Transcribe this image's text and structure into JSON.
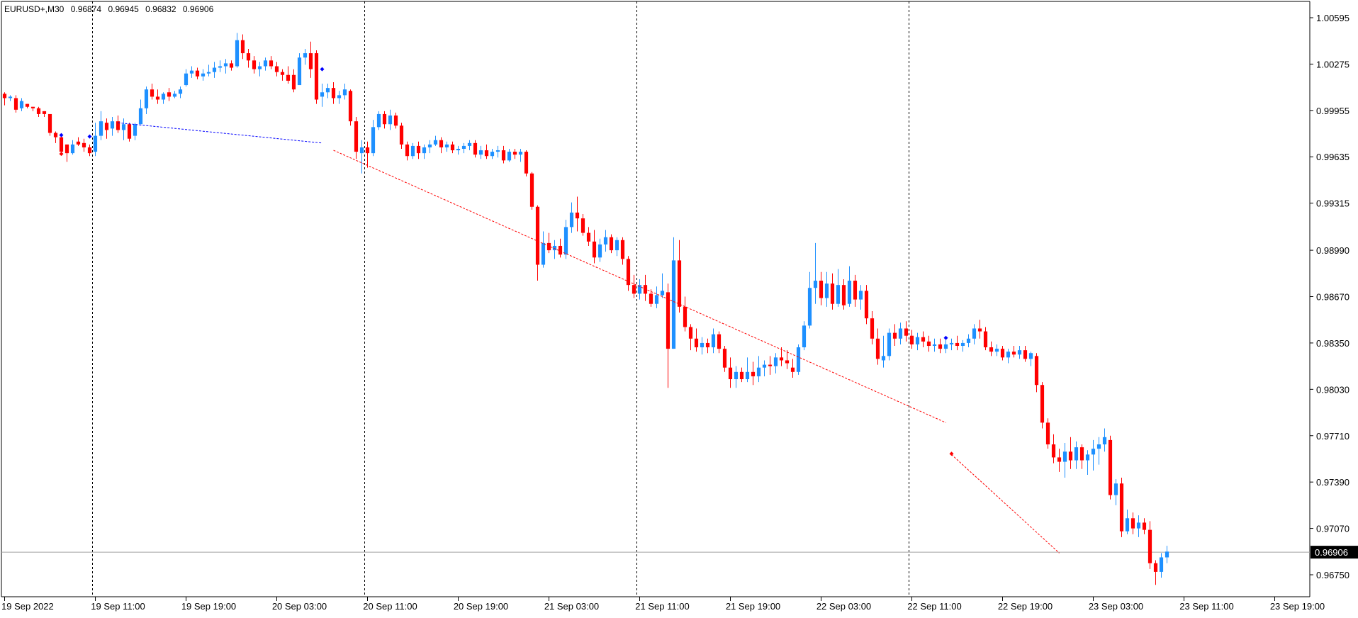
{
  "header": {
    "symbol": "EURUSD+,M30",
    "open": "0.96874",
    "high": "0.96945",
    "low": "0.96832",
    "close": "0.96906"
  },
  "chart_data": {
    "type": "candlestick",
    "timeframe": "M30",
    "grid": false,
    "y_ticks": [
      "1.00595",
      "1.00275",
      "0.99955",
      "0.99635",
      "0.99315",
      "0.98990",
      "0.98670",
      "0.98350",
      "0.98030",
      "0.97710",
      "0.97390",
      "0.97070",
      "0.96750"
    ],
    "current_price": "0.96906",
    "x_ticks": [
      "19 Sep 2022",
      "19 Sep 11:00",
      "19 Sep 19:00",
      "20 Sep 03:00",
      "20 Sep 11:00",
      "20 Sep 19:00",
      "21 Sep 03:00",
      "21 Sep 11:00",
      "21 Sep 19:00",
      "22 Sep 03:00",
      "22 Sep 11:00",
      "22 Sep 19:00",
      "23 Sep 03:00",
      "23 Sep 11:00",
      "23 Sep 19:00"
    ],
    "day_separators": [
      "20 Sep 2022 00:00",
      "21 Sep 2022 00:00",
      "22 Sep 2022 00:00",
      "23 Sep 2022 00:00"
    ],
    "colors": {
      "bull": "#1e90ff",
      "bear": "#ff0000",
      "axis": "#000000",
      "price_line": "#a0a0a0",
      "trend_red": "#ff0000",
      "trend_blue": "#0000ff"
    },
    "candles": [
      [
        1.0007,
        1.0008,
        0.9999,
        1.0004
      ],
      [
        1.0004,
        1.0006,
        1.0002,
        1.0005
      ],
      [
        1.0004,
        1.0006,
        0.9994,
        0.9996
      ],
      [
        0.9997,
        1.0004,
        0.9995,
        1.0002
      ],
      [
        1.0,
        1.0,
        0.9997,
        0.9998
      ],
      [
        0.9998,
        0.9998,
        0.9995,
        0.9997
      ],
      [
        0.9997,
        0.9998,
        0.9991,
        0.9993
      ],
      [
        0.9995,
        0.9995,
        0.9991,
        0.9993
      ],
      [
        0.9993,
        0.9993,
        0.9978,
        0.998
      ],
      [
        0.998,
        0.9981,
        0.9973,
        0.9977
      ],
      [
        0.9977,
        0.9979,
        0.9965,
        0.9967
      ],
      [
        0.9972,
        0.9972,
        0.996,
        0.9966
      ],
      [
        0.9966,
        0.9975,
        0.9965,
        0.9972
      ],
      [
        0.9974,
        0.9977,
        0.9971,
        0.9972
      ],
      [
        0.9973,
        0.9976,
        0.9967,
        0.997
      ],
      [
        0.997,
        0.9972,
        0.9964,
        0.9966
      ],
      [
        0.9967,
        0.9987,
        0.9964,
        0.9978
      ],
      [
        0.9978,
        0.9995,
        0.9975,
        0.9988
      ],
      [
        0.9987,
        0.999,
        0.9976,
        0.9982
      ],
      [
        0.9983,
        0.9991,
        0.9978,
        0.9988
      ],
      [
        0.9988,
        0.9992,
        0.998,
        0.9982
      ],
      [
        0.9982,
        0.999,
        0.9975,
        0.9986
      ],
      [
        0.9986,
        0.9987,
        0.9974,
        0.9976
      ],
      [
        0.9978,
        0.9987,
        0.9975,
        0.9986
      ],
      [
        0.9986,
        1.0003,
        0.9986,
        0.9997
      ],
      [
        0.9997,
        1.0012,
        0.9993,
        1.001
      ],
      [
        1.001,
        1.0014,
        1.0003,
        1.0005
      ],
      [
        1.0005,
        1.001,
        1.0,
        1.0003
      ],
      [
        1.0003,
        1.0008,
        1.0,
        1.0007
      ],
      [
        1.0008,
        1.0011,
        1.0002,
        1.0005
      ],
      [
        1.0005,
        1.0009,
        1.0004,
        1.0007
      ],
      [
        1.0007,
        1.0012,
        1.0004,
        1.001
      ],
      [
        1.0013,
        1.0024,
        1.0012,
        1.0021
      ],
      [
        1.0021,
        1.0026,
        1.0018,
        1.0023
      ],
      [
        1.0023,
        1.0025,
        1.0017,
        1.0019
      ],
      [
        1.0019,
        1.0024,
        1.0016,
        1.0021
      ],
      [
        1.0021,
        1.0027,
        1.0019,
        1.0022
      ],
      [
        1.0022,
        1.0029,
        1.0018,
        1.0025
      ],
      [
        1.0025,
        1.003,
        1.0022,
        1.0026
      ],
      [
        1.0026,
        1.0031,
        1.0021,
        1.0028
      ],
      [
        1.0028,
        1.003,
        1.0023,
        1.0025
      ],
      [
        1.0026,
        1.0049,
        1.0025,
        1.0044
      ],
      [
        1.0044,
        1.0048,
        1.0031,
        1.0035
      ],
      [
        1.0035,
        1.0038,
        1.0025,
        1.003
      ],
      [
        1.003,
        1.0033,
        1.0021,
        1.0024
      ],
      [
        1.0024,
        1.0029,
        1.0019,
        1.0026
      ],
      [
        1.0026,
        1.0032,
        1.0023,
        1.003
      ],
      [
        1.003,
        1.0033,
        1.0024,
        1.0026
      ],
      [
        1.0026,
        1.0029,
        1.0019,
        1.0022
      ],
      [
        1.0022,
        1.0024,
        1.0016,
        1.002
      ],
      [
        1.002,
        1.0026,
        1.0014,
        1.0016
      ],
      [
        1.002,
        1.0024,
        1.0008,
        1.001
      ],
      [
        1.0013,
        1.0035,
        1.0013,
        1.0032
      ],
      [
        1.0032,
        1.0038,
        1.0027,
        1.0035
      ],
      [
        1.0035,
        1.0043,
        1.0018,
        1.0024
      ],
      [
        1.0035,
        1.0037,
        1.0,
        1.0003
      ],
      [
        1.0005,
        1.0014,
        0.9998,
        1.0008
      ],
      [
        1.0008,
        1.0014,
        1.0004,
        1.0011
      ],
      [
        1.0011,
        1.0015,
        1.0,
        1.0004
      ],
      [
        1.0004,
        1.0009,
        1.0,
        1.0006
      ],
      [
        1.0006,
        1.0014,
        1.0003,
        1.001
      ],
      [
        1.0009,
        1.001,
        0.9985,
        0.9988
      ],
      [
        0.9988,
        0.9991,
        0.9962,
        0.9967
      ],
      [
        0.9966,
        0.9975,
        0.9952,
        0.997
      ],
      [
        0.997,
        0.9974,
        0.9956,
        0.9966
      ],
      [
        0.9966,
        0.9989,
        0.9964,
        0.9984
      ],
      [
        0.9984,
        0.9995,
        0.9982,
        0.9993
      ],
      [
        0.9993,
        0.9995,
        0.9983,
        0.9986
      ],
      [
        0.9986,
        0.9996,
        0.9982,
        0.9992
      ],
      [
        0.9992,
        0.9994,
        0.9983,
        0.9985
      ],
      [
        0.9985,
        0.9987,
        0.9969,
        0.9972
      ],
      [
        0.9972,
        0.9974,
        0.9961,
        0.9964
      ],
      [
        0.9964,
        0.9973,
        0.9962,
        0.9971
      ],
      [
        0.9971,
        0.9974,
        0.9962,
        0.9966
      ],
      [
        0.9966,
        0.9972,
        0.9962,
        0.997
      ],
      [
        0.997,
        0.9975,
        0.9966,
        0.9972
      ],
      [
        0.9972,
        0.9978,
        0.9971,
        0.9975
      ],
      [
        0.9975,
        0.9977,
        0.9966,
        0.997
      ],
      [
        0.997,
        0.9974,
        0.9967,
        0.9972
      ],
      [
        0.9972,
        0.9974,
        0.9966,
        0.9968
      ],
      [
        0.9968,
        0.9971,
        0.9965,
        0.9969
      ],
      [
        0.9969,
        0.9973,
        0.9966,
        0.9971
      ],
      [
        0.9971,
        0.9975,
        0.9968,
        0.9973
      ],
      [
        0.9973,
        0.9975,
        0.9963,
        0.9965
      ],
      [
        0.9965,
        0.9971,
        0.9962,
        0.9968
      ],
      [
        0.9968,
        0.9972,
        0.9962,
        0.9964
      ],
      [
        0.9964,
        0.9969,
        0.9962,
        0.9967
      ],
      [
        0.9967,
        0.9971,
        0.9963,
        0.9968
      ],
      [
        0.9968,
        0.9971,
        0.9959,
        0.9961
      ],
      [
        0.9961,
        0.9969,
        0.996,
        0.9967
      ],
      [
        0.9967,
        0.9969,
        0.9962,
        0.9965
      ],
      [
        0.9965,
        0.9969,
        0.996,
        0.9967
      ],
      [
        0.9967,
        0.9968,
        0.995,
        0.9952
      ],
      [
        0.9952,
        0.9953,
        0.9927,
        0.9929
      ],
      [
        0.9929,
        0.993,
        0.9878,
        0.9889
      ],
      [
        0.9889,
        0.9912,
        0.9887,
        0.9904
      ],
      [
        0.9904,
        0.9911,
        0.9897,
        0.9899
      ],
      [
        0.9899,
        0.9906,
        0.9893,
        0.9902
      ],
      [
        0.9902,
        0.9907,
        0.9894,
        0.9896
      ],
      [
        0.9896,
        0.992,
        0.9893,
        0.9915
      ],
      [
        0.9915,
        0.9932,
        0.9911,
        0.9925
      ],
      [
        0.9925,
        0.9936,
        0.9912,
        0.9921
      ],
      [
        0.9921,
        0.9924,
        0.9909,
        0.9911
      ],
      [
        0.9911,
        0.9915,
        0.9902,
        0.9905
      ],
      [
        0.9905,
        0.9913,
        0.989,
        0.9894
      ],
      [
        0.9894,
        0.9907,
        0.9891,
        0.9903
      ],
      [
        0.9903,
        0.9913,
        0.9898,
        0.9908
      ],
      [
        0.9908,
        0.991,
        0.9897,
        0.9899
      ],
      [
        0.9899,
        0.9908,
        0.9895,
        0.9906
      ],
      [
        0.9906,
        0.9908,
        0.9889,
        0.9893
      ],
      [
        0.9893,
        0.9895,
        0.9871,
        0.9875
      ],
      [
        0.9875,
        0.9882,
        0.9866,
        0.9869
      ],
      [
        0.9869,
        0.9879,
        0.9865,
        0.9875
      ],
      [
        0.9875,
        0.9882,
        0.9864,
        0.9869
      ],
      [
        0.9869,
        0.9872,
        0.986,
        0.9862
      ],
      [
        0.9862,
        0.9874,
        0.9859,
        0.9868
      ],
      [
        0.9868,
        0.9883,
        0.9866,
        0.9871
      ],
      [
        0.987,
        0.9876,
        0.9804,
        0.9831
      ],
      [
        0.9831,
        0.9908,
        0.9831,
        0.9892
      ],
      [
        0.9892,
        0.9906,
        0.9856,
        0.986
      ],
      [
        0.986,
        0.9867,
        0.9843,
        0.9846
      ],
      [
        0.9846,
        0.9848,
        0.983,
        0.9838
      ],
      [
        0.9838,
        0.9845,
        0.9829,
        0.9832
      ],
      [
        0.9832,
        0.9839,
        0.9827,
        0.9835
      ],
      [
        0.9835,
        0.9838,
        0.9828,
        0.9832
      ],
      [
        0.9832,
        0.9845,
        0.9828,
        0.9841
      ],
      [
        0.9841,
        0.9843,
        0.9828,
        0.9831
      ],
      [
        0.9831,
        0.9833,
        0.9815,
        0.9818
      ],
      [
        0.9818,
        0.9825,
        0.9804,
        0.981
      ],
      [
        0.981,
        0.9819,
        0.9804,
        0.9815
      ],
      [
        0.9815,
        0.9818,
        0.9808,
        0.981
      ],
      [
        0.981,
        0.9825,
        0.9808,
        0.9815
      ],
      [
        0.9815,
        0.9822,
        0.9806,
        0.9812
      ],
      [
        0.9812,
        0.9826,
        0.9808,
        0.9818
      ],
      [
        0.9818,
        0.9823,
        0.9812,
        0.982
      ],
      [
        0.982,
        0.9826,
        0.9813,
        0.9819
      ],
      [
        0.9819,
        0.9828,
        0.9814,
        0.9825
      ],
      [
        0.9825,
        0.9832,
        0.9819,
        0.9823
      ],
      [
        0.9823,
        0.983,
        0.9817,
        0.9821
      ],
      [
        0.9818,
        0.9824,
        0.9811,
        0.9815
      ],
      [
        0.9815,
        0.9834,
        0.9813,
        0.9832
      ],
      [
        0.9832,
        0.985,
        0.983,
        0.9847
      ],
      [
        0.9847,
        0.9884,
        0.9845,
        0.9873
      ],
      [
        0.9873,
        0.9904,
        0.9862,
        0.9878
      ],
      [
        0.9878,
        0.9884,
        0.9861,
        0.9866
      ],
      [
        0.9866,
        0.9884,
        0.986,
        0.9876
      ],
      [
        0.9876,
        0.9883,
        0.9858,
        0.9862
      ],
      [
        0.9862,
        0.9886,
        0.986,
        0.9875
      ],
      [
        0.9875,
        0.9879,
        0.9858,
        0.9861
      ],
      [
        0.9862,
        0.9888,
        0.986,
        0.9878
      ],
      [
        0.9878,
        0.9882,
        0.986,
        0.9865
      ],
      [
        0.9865,
        0.9875,
        0.9858,
        0.9871
      ],
      [
        0.9871,
        0.9875,
        0.9848,
        0.9852
      ],
      [
        0.9852,
        0.9857,
        0.9834,
        0.9838
      ],
      [
        0.9838,
        0.9845,
        0.982,
        0.9824
      ],
      [
        0.9823,
        0.984,
        0.9818,
        0.9826
      ],
      [
        0.9826,
        0.9845,
        0.9823,
        0.9842
      ],
      [
        0.9842,
        0.9848,
        0.9833,
        0.9838
      ],
      [
        0.9838,
        0.9849,
        0.9834,
        0.9845
      ],
      [
        0.9845,
        0.985,
        0.9836,
        0.984
      ],
      [
        0.984,
        0.9844,
        0.9831,
        0.9834
      ],
      [
        0.9834,
        0.9842,
        0.983,
        0.9839
      ],
      [
        0.9839,
        0.9843,
        0.9832,
        0.9836
      ],
      [
        0.9836,
        0.984,
        0.9829,
        0.9833
      ],
      [
        0.9833,
        0.9838,
        0.9829,
        0.9834
      ],
      [
        0.9834,
        0.9838,
        0.9828,
        0.9831
      ],
      [
        0.9831,
        0.9837,
        0.9828,
        0.9834
      ],
      [
        0.9834,
        0.9838,
        0.983,
        0.9835
      ],
      [
        0.9835,
        0.984,
        0.983,
        0.9833
      ],
      [
        0.9833,
        0.9837,
        0.9829,
        0.9835
      ],
      [
        0.9835,
        0.9841,
        0.9832,
        0.9838
      ],
      [
        0.9838,
        0.9848,
        0.9834,
        0.9845
      ],
      [
        0.9845,
        0.9851,
        0.9838,
        0.9843
      ],
      [
        0.9843,
        0.9846,
        0.983,
        0.9832
      ],
      [
        0.9832,
        0.9836,
        0.9826,
        0.9829
      ],
      [
        0.9829,
        0.9834,
        0.9826,
        0.9831
      ],
      [
        0.9831,
        0.9833,
        0.9823,
        0.9825
      ],
      [
        0.9825,
        0.9831,
        0.9821,
        0.9829
      ],
      [
        0.9829,
        0.9833,
        0.9825,
        0.9827
      ],
      [
        0.9827,
        0.9833,
        0.9824,
        0.983
      ],
      [
        0.983,
        0.9833,
        0.9822,
        0.9824
      ],
      [
        0.9824,
        0.9829,
        0.9819,
        0.9828
      ],
      [
        0.9826,
        0.9828,
        0.9801,
        0.9806
      ],
      [
        0.9806,
        0.9808,
        0.9776,
        0.978
      ],
      [
        0.978,
        0.9783,
        0.9762,
        0.9765
      ],
      [
        0.9765,
        0.9772,
        0.9752,
        0.9756
      ],
      [
        0.9756,
        0.9762,
        0.9746,
        0.9753
      ],
      [
        0.9753,
        0.9766,
        0.9742,
        0.976
      ],
      [
        0.976,
        0.977,
        0.9748,
        0.9754
      ],
      [
        0.9754,
        0.9767,
        0.9748,
        0.9763
      ],
      [
        0.9763,
        0.9765,
        0.9748,
        0.9754
      ],
      [
        0.9754,
        0.9761,
        0.9744,
        0.9758
      ],
      [
        0.9758,
        0.9768,
        0.9747,
        0.9762
      ],
      [
        0.9762,
        0.977,
        0.9751,
        0.9765
      ],
      [
        0.9765,
        0.9776,
        0.976,
        0.977
      ],
      [
        0.9768,
        0.9771,
        0.9727,
        0.973
      ],
      [
        0.973,
        0.9741,
        0.9723,
        0.9738
      ],
      [
        0.9738,
        0.9742,
        0.9701,
        0.9705
      ],
      [
        0.9705,
        0.972,
        0.9703,
        0.9714
      ],
      [
        0.9714,
        0.9718,
        0.9703,
        0.9707
      ],
      [
        0.9707,
        0.9716,
        0.9701,
        0.9711
      ],
      [
        0.9711,
        0.9714,
        0.9703,
        0.9706
      ],
      [
        0.9706,
        0.9712,
        0.9679,
        0.9683
      ],
      [
        0.9683,
        0.9685,
        0.9668,
        0.9677
      ],
      [
        0.9677,
        0.969,
        0.9673,
        0.9687
      ],
      [
        0.9687,
        0.9695,
        0.9683,
        0.9691
      ]
    ]
  }
}
